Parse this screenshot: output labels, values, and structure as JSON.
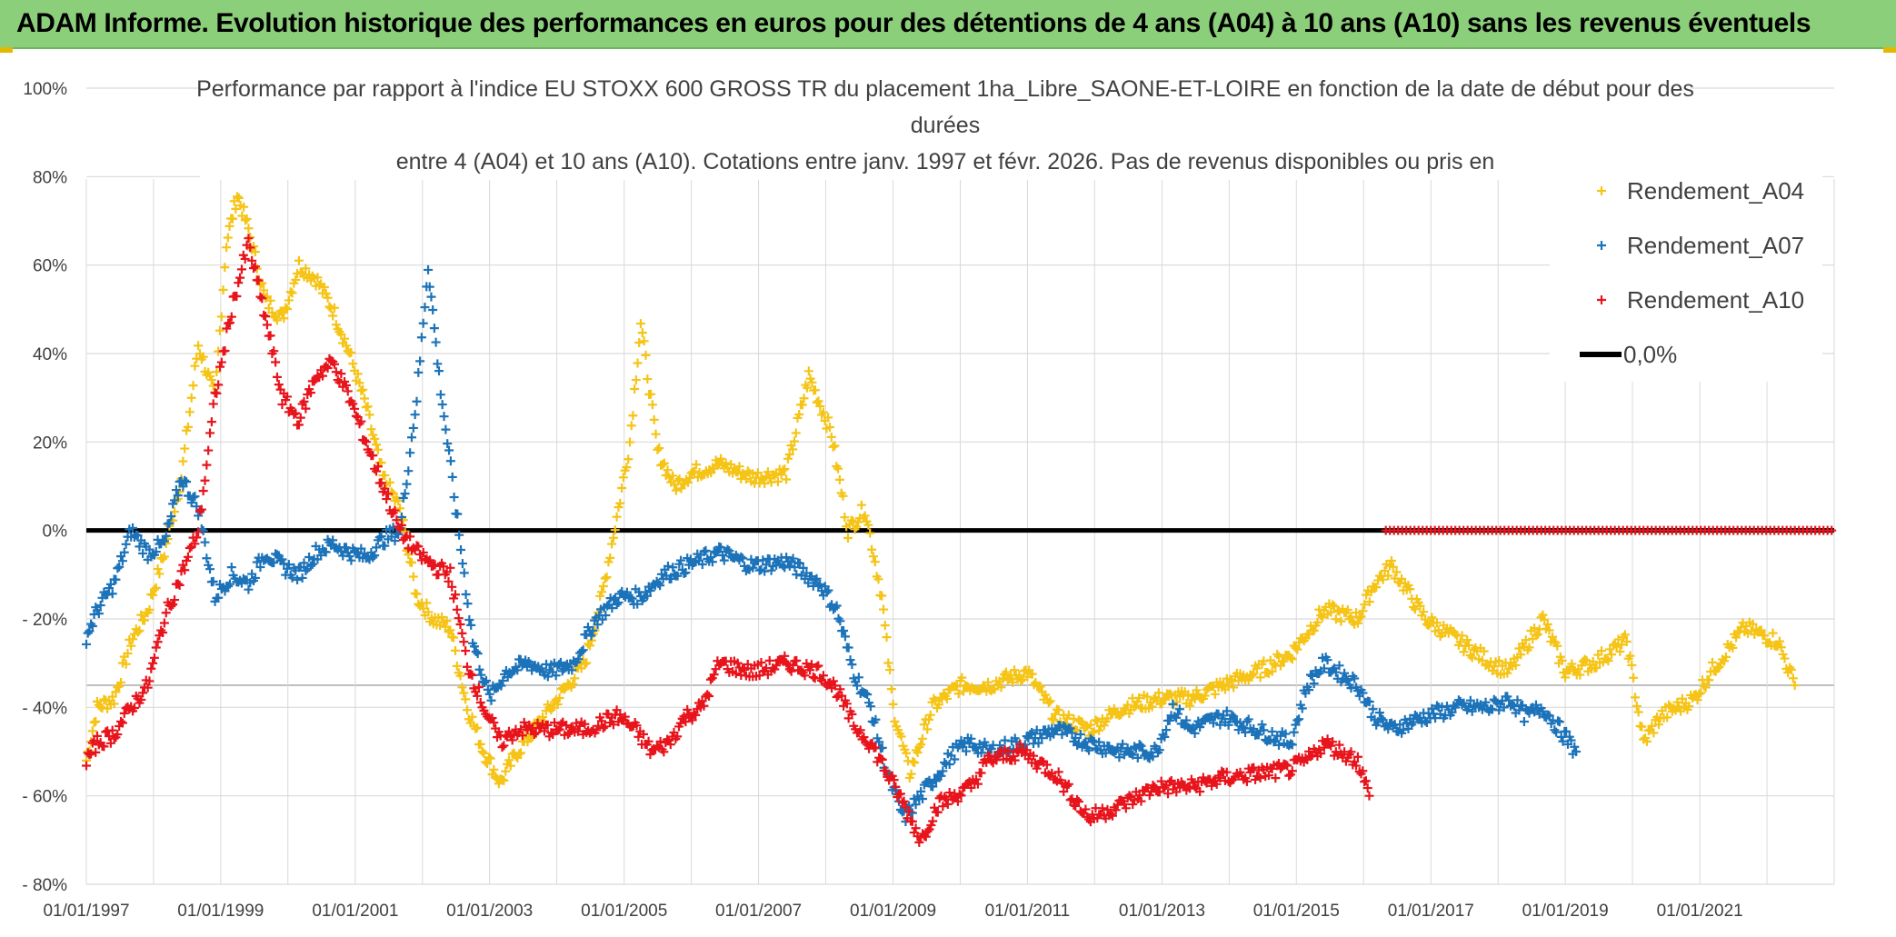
{
  "banner": {
    "title": "ADAM Informe. Evolution historique des performances en euros pour des détentions de 4 ans (A04) à 10 ans (A10) sans les revenus éventuels"
  },
  "colors": {
    "banner_bg": "#8ccf7a",
    "A04": "#f5c416",
    "A07": "#1c73b9",
    "A10": "#e8141c",
    "zero_line": "#000000",
    "grid": "#d9d9d9"
  },
  "chart_data": {
    "type": "scatter",
    "title_lines": [
      "Performance par rapport à l'indice EU STOXX 600 GROSS TR  du placement 1ha_Libre_SAONE-ET-LOIRE en fonction de la date de début pour des",
      "durées",
      "entre 4 (A04) et 10 ans (A10). Cotations entre janv. 1997 et févr. 2026. Pas de revenus disponibles ou pris en"
    ],
    "x_axis": {
      "type": "date",
      "range": [
        "1997-01-01",
        "2023-01-01"
      ],
      "tick_labels": [
        "01/01/1997",
        "01/01/1999",
        "01/01/2001",
        "01/01/2003",
        "01/01/2005",
        "01/01/2007",
        "01/01/2009",
        "01/01/2011",
        "01/01/2013",
        "01/01/2015",
        "01/01/2017",
        "01/01/2019",
        "01/01/2021"
      ]
    },
    "y_axis": {
      "range": [
        -0.8,
        1.0
      ],
      "ticks": [
        1.0,
        0.8,
        0.6,
        0.4,
        0.2,
        0.0,
        -0.2,
        -0.4,
        -0.6,
        -0.8
      ],
      "tick_labels": [
        "100%",
        "80%",
        "60%",
        "40%",
        "20%",
        "0%",
        "- 20%",
        "- 40%",
        "- 60%",
        "- 80%"
      ]
    },
    "grid": true,
    "legend": {
      "placement": "top-right",
      "entries": [
        "Rendement_A04",
        "Rendement_A07",
        "Rendement_A10",
        "0,0%"
      ]
    },
    "series": [
      {
        "name": "Rendement_A04",
        "color": "#f5c416",
        "points": [
          [
            "1997-01-01",
            -0.52
          ],
          [
            "1997-03-01",
            -0.4
          ],
          [
            "1997-06-01",
            -0.38
          ],
          [
            "1997-09-01",
            -0.25
          ],
          [
            "1997-12-01",
            -0.18
          ],
          [
            "1998-03-01",
            -0.05
          ],
          [
            "1998-06-01",
            0.12
          ],
          [
            "1998-09-01",
            0.42
          ],
          [
            "1998-12-01",
            0.3
          ],
          [
            "1999-02-01",
            0.65
          ],
          [
            "1999-04-01",
            0.76
          ],
          [
            "1999-06-01",
            0.68
          ],
          [
            "1999-09-01",
            0.52
          ],
          [
            "1999-12-01",
            0.48
          ],
          [
            "2000-03-01",
            0.6
          ],
          [
            "2000-06-01",
            0.57
          ],
          [
            "2000-09-01",
            0.5
          ],
          [
            "2000-12-01",
            0.4
          ],
          [
            "2001-03-01",
            0.28
          ],
          [
            "2001-06-01",
            0.12
          ],
          [
            "2001-09-01",
            0.05
          ],
          [
            "2001-12-01",
            -0.15
          ],
          [
            "2002-03-01",
            -0.2
          ],
          [
            "2002-06-01",
            -0.22
          ],
          [
            "2002-09-01",
            -0.4
          ],
          [
            "2002-12-01",
            -0.5
          ],
          [
            "2003-03-01",
            -0.57
          ],
          [
            "2003-06-01",
            -0.5
          ],
          [
            "2003-09-01",
            -0.45
          ],
          [
            "2003-12-01",
            -0.4
          ],
          [
            "2004-03-01",
            -0.35
          ],
          [
            "2004-06-01",
            -0.3
          ],
          [
            "2004-09-01",
            -0.15
          ],
          [
            "2004-12-01",
            0.05
          ],
          [
            "2005-02-01",
            0.2
          ],
          [
            "2005-04-01",
            0.47
          ],
          [
            "2005-07-01",
            0.18
          ],
          [
            "2005-10-01",
            0.1
          ],
          [
            "2006-01-01",
            0.13
          ],
          [
            "2006-06-01",
            0.15
          ],
          [
            "2006-12-01",
            0.12
          ],
          [
            "2007-06-01",
            0.13
          ],
          [
            "2007-10-01",
            0.35
          ],
          [
            "2008-02-01",
            0.22
          ],
          [
            "2008-05-01",
            0.0
          ],
          [
            "2008-08-01",
            0.05
          ],
          [
            "2008-11-01",
            -0.15
          ],
          [
            "2009-01-01",
            -0.4
          ],
          [
            "2009-04-01",
            -0.55
          ],
          [
            "2009-08-01",
            -0.4
          ],
          [
            "2010-01-01",
            -0.35
          ],
          [
            "2010-06-01",
            -0.35
          ],
          [
            "2011-01-01",
            -0.32
          ],
          [
            "2011-06-01",
            -0.42
          ],
          [
            "2011-12-01",
            -0.45
          ],
          [
            "2012-06-01",
            -0.4
          ],
          [
            "2013-01-01",
            -0.38
          ],
          [
            "2013-06-01",
            -0.38
          ],
          [
            "2013-12-01",
            -0.35
          ],
          [
            "2014-06-01",
            -0.32
          ],
          [
            "2014-12-01",
            -0.28
          ],
          [
            "2015-06-01",
            -0.18
          ],
          [
            "2015-12-01",
            -0.2
          ],
          [
            "2016-03-01",
            -0.12
          ],
          [
            "2016-06-01",
            -0.08
          ],
          [
            "2016-12-01",
            -0.2
          ],
          [
            "2017-06-01",
            -0.25
          ],
          [
            "2017-12-01",
            -0.3
          ],
          [
            "2018-03-01",
            -0.32
          ],
          [
            "2018-09-01",
            -0.2
          ],
          [
            "2019-01-01",
            -0.32
          ],
          [
            "2019-06-01",
            -0.3
          ],
          [
            "2019-12-01",
            -0.25
          ],
          [
            "2020-03-01",
            -0.48
          ],
          [
            "2020-06-01",
            -0.42
          ],
          [
            "2020-12-01",
            -0.38
          ],
          [
            "2021-03-01",
            -0.32
          ],
          [
            "2021-09-01",
            -0.22
          ],
          [
            "2022-03-01",
            -0.25
          ],
          [
            "2022-06-01",
            -0.35
          ]
        ]
      },
      {
        "name": "Rendement_A07",
        "color": "#1c73b9",
        "points": [
          [
            "1997-01-01",
            -0.24
          ],
          [
            "1997-03-01",
            -0.18
          ],
          [
            "1997-06-01",
            -0.12
          ],
          [
            "1997-09-01",
            0.0
          ],
          [
            "1997-12-01",
            -0.05
          ],
          [
            "1998-03-01",
            -0.03
          ],
          [
            "1998-06-01",
            0.12
          ],
          [
            "1998-09-01",
            0.05
          ],
          [
            "1998-12-01",
            -0.15
          ],
          [
            "1999-03-01",
            -0.1
          ],
          [
            "1999-06-01",
            -0.12
          ],
          [
            "1999-09-01",
            -0.05
          ],
          [
            "1999-12-01",
            -0.08
          ],
          [
            "2000-03-01",
            -0.1
          ],
          [
            "2000-06-01",
            -0.05
          ],
          [
            "2000-09-01",
            -0.03
          ],
          [
            "2000-12-01",
            -0.05
          ],
          [
            "2001-03-01",
            -0.06
          ],
          [
            "2001-06-01",
            -0.02
          ],
          [
            "2001-09-01",
            0.0
          ],
          [
            "2001-12-01",
            0.3
          ],
          [
            "2002-02-01",
            0.6
          ],
          [
            "2002-04-01",
            0.35
          ],
          [
            "2002-07-01",
            0.05
          ],
          [
            "2002-10-01",
            -0.25
          ],
          [
            "2003-01-01",
            -0.38
          ],
          [
            "2003-04-01",
            -0.32
          ],
          [
            "2003-08-01",
            -0.3
          ],
          [
            "2003-12-01",
            -0.32
          ],
          [
            "2004-04-01",
            -0.3
          ],
          [
            "2004-08-01",
            -0.2
          ],
          [
            "2004-12-01",
            -0.15
          ],
          [
            "2005-04-01",
            -0.15
          ],
          [
            "2005-08-01",
            -0.1
          ],
          [
            "2005-12-01",
            -0.08
          ],
          [
            "2006-06-01",
            -0.05
          ],
          [
            "2006-12-01",
            -0.08
          ],
          [
            "2007-06-01",
            -0.07
          ],
          [
            "2007-12-01",
            -0.12
          ],
          [
            "2008-03-01",
            -0.18
          ],
          [
            "2008-06-01",
            -0.32
          ],
          [
            "2008-09-01",
            -0.4
          ],
          [
            "2008-12-01",
            -0.55
          ],
          [
            "2009-03-01",
            -0.65
          ],
          [
            "2009-06-01",
            -0.6
          ],
          [
            "2009-09-01",
            -0.55
          ],
          [
            "2009-12-01",
            -0.5
          ],
          [
            "2010-03-01",
            -0.48
          ],
          [
            "2010-06-01",
            -0.5
          ],
          [
            "2010-12-01",
            -0.48
          ],
          [
            "2011-06-01",
            -0.45
          ],
          [
            "2011-12-01",
            -0.48
          ],
          [
            "2012-06-01",
            -0.5
          ],
          [
            "2012-12-01",
            -0.5
          ],
          [
            "2013-03-01",
            -0.4
          ],
          [
            "2013-06-01",
            -0.45
          ],
          [
            "2013-12-01",
            -0.42
          ],
          [
            "2014-06-01",
            -0.45
          ],
          [
            "2014-12-01",
            -0.48
          ],
          [
            "2015-03-01",
            -0.35
          ],
          [
            "2015-06-01",
            -0.3
          ],
          [
            "2015-12-01",
            -0.35
          ],
          [
            "2016-03-01",
            -0.42
          ],
          [
            "2016-06-01",
            -0.45
          ],
          [
            "2016-12-01",
            -0.42
          ],
          [
            "2017-06-01",
            -0.4
          ],
          [
            "2017-12-01",
            -0.4
          ],
          [
            "2018-03-01",
            -0.38
          ],
          [
            "2018-06-01",
            -0.42
          ],
          [
            "2018-09-01",
            -0.4
          ],
          [
            "2018-12-01",
            -0.45
          ],
          [
            "2019-03-01",
            -0.5
          ]
        ]
      },
      {
        "name": "Rendement_A10",
        "color": "#e8141c",
        "points": [
          [
            "1997-01-01",
            -0.52
          ],
          [
            "1997-03-01",
            -0.48
          ],
          [
            "1997-06-01",
            -0.46
          ],
          [
            "1997-09-01",
            -0.4
          ],
          [
            "1997-12-01",
            -0.35
          ],
          [
            "1998-03-01",
            -0.2
          ],
          [
            "1998-06-01",
            -0.1
          ],
          [
            "1998-09-01",
            0.0
          ],
          [
            "1998-12-01",
            0.3
          ],
          [
            "1999-03-01",
            0.5
          ],
          [
            "1999-06-01",
            0.65
          ],
          [
            "1999-09-01",
            0.48
          ],
          [
            "1999-12-01",
            0.3
          ],
          [
            "2000-03-01",
            0.25
          ],
          [
            "2000-06-01",
            0.35
          ],
          [
            "2000-09-01",
            0.38
          ],
          [
            "2000-12-01",
            0.3
          ],
          [
            "2001-03-01",
            0.2
          ],
          [
            "2001-06-01",
            0.1
          ],
          [
            "2001-09-01",
            0.0
          ],
          [
            "2001-12-01",
            -0.05
          ],
          [
            "2002-03-01",
            -0.08
          ],
          [
            "2002-06-01",
            -0.1
          ],
          [
            "2002-09-01",
            -0.3
          ],
          [
            "2002-12-01",
            -0.4
          ],
          [
            "2003-03-01",
            -0.48
          ],
          [
            "2003-06-01",
            -0.45
          ],
          [
            "2003-12-01",
            -0.45
          ],
          [
            "2004-06-01",
            -0.45
          ],
          [
            "2004-12-01",
            -0.42
          ],
          [
            "2005-03-01",
            -0.45
          ],
          [
            "2005-06-01",
            -0.5
          ],
          [
            "2005-09-01",
            -0.48
          ],
          [
            "2005-12-01",
            -0.42
          ],
          [
            "2006-03-01",
            -0.4
          ],
          [
            "2006-06-01",
            -0.3
          ],
          [
            "2006-12-01",
            -0.32
          ],
          [
            "2007-06-01",
            -0.3
          ],
          [
            "2007-12-01",
            -0.32
          ],
          [
            "2008-03-01",
            -0.36
          ],
          [
            "2008-06-01",
            -0.44
          ],
          [
            "2008-09-01",
            -0.48
          ],
          [
            "2008-12-01",
            -0.55
          ],
          [
            "2009-03-01",
            -0.62
          ],
          [
            "2009-06-01",
            -0.7
          ],
          [
            "2009-09-01",
            -0.62
          ],
          [
            "2009-12-01",
            -0.6
          ],
          [
            "2010-03-01",
            -0.58
          ],
          [
            "2010-06-01",
            -0.52
          ],
          [
            "2010-12-01",
            -0.5
          ],
          [
            "2011-06-01",
            -0.55
          ],
          [
            "2011-12-01",
            -0.65
          ],
          [
            "2012-06-01",
            -0.62
          ],
          [
            "2012-12-01",
            -0.58
          ],
          [
            "2013-06-01",
            -0.58
          ],
          [
            "2013-12-01",
            -0.56
          ],
          [
            "2014-06-01",
            -0.55
          ],
          [
            "2014-12-01",
            -0.54
          ],
          [
            "2015-03-01",
            -0.52
          ],
          [
            "2015-06-01",
            -0.48
          ],
          [
            "2015-12-01",
            -0.52
          ],
          [
            "2016-02-01",
            -0.6
          ]
        ],
        "flat_zero_range": [
          "2016-05-01",
          "2023-01-01"
        ]
      }
    ],
    "reference_line": {
      "name": "0,0%",
      "value": 0.0,
      "color": "#000000"
    }
  }
}
